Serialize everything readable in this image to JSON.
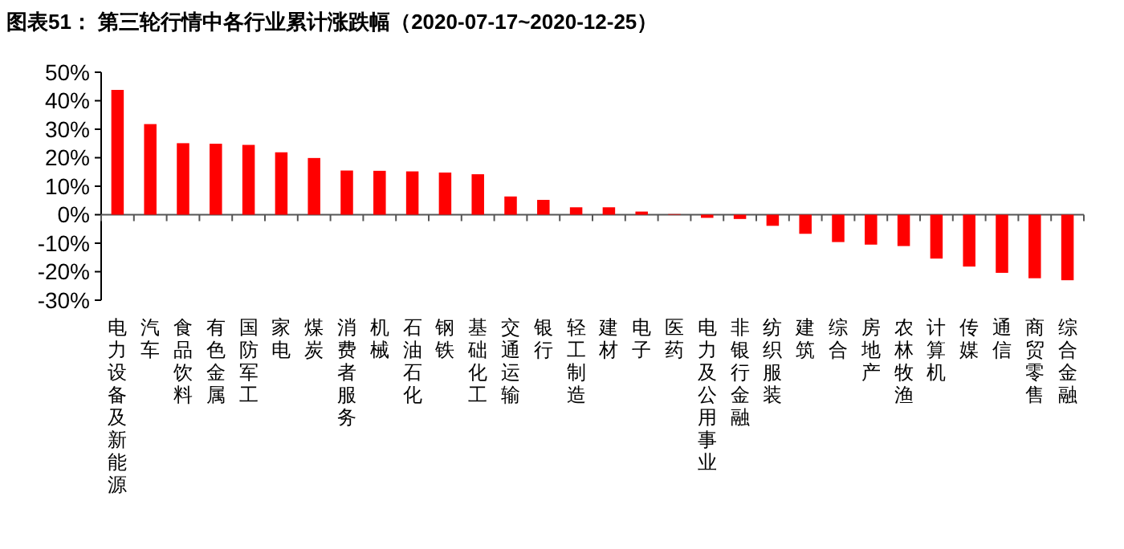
{
  "chart_data": {
    "type": "bar",
    "title": "图表51： 第三轮行情中各行业累计涨跌幅（2020-07-17~2020-12-25）",
    "categories": [
      "电力设备及新能源",
      "汽车",
      "食品饮料",
      "有色金属",
      "国防军工",
      "家电",
      "煤炭",
      "消费者服务",
      "机械",
      "石油石化",
      "钢铁",
      "基础化工",
      "交通运输",
      "银行",
      "轻工制造",
      "建材",
      "电子",
      "医药",
      "电力及公用事业",
      "非银行金融",
      "纺织服装",
      "建筑",
      "综合",
      "房地产",
      "农林牧渔",
      "计算机",
      "传媒",
      "通信",
      "商贸零售",
      "综合金融"
    ],
    "values": [
      43.8,
      31.8,
      25.1,
      24.9,
      24.5,
      21.9,
      19.9,
      15.5,
      15.4,
      15.2,
      14.8,
      14.2,
      6.4,
      5.2,
      2.6,
      2.6,
      1.1,
      0.2,
      -1.1,
      -1.5,
      -3.9,
      -6.7,
      -9.6,
      -10.5,
      -11.0,
      -15.4,
      -18.2,
      -20.4,
      -22.3,
      -23.0
    ],
    "color": "#ff0000",
    "ylim": [
      -30,
      50
    ],
    "yticks": [
      {
        "value": -30,
        "label": "-30%"
      },
      {
        "value": -20,
        "label": "-20%"
      },
      {
        "value": -10,
        "label": "-10%"
      },
      {
        "value": 0,
        "label": "0%"
      },
      {
        "value": 10,
        "label": "10%"
      },
      {
        "value": 20,
        "label": "20%"
      },
      {
        "value": 30,
        "label": "30%"
      },
      {
        "value": 40,
        "label": "40%"
      },
      {
        "value": 50,
        "label": "50%"
      }
    ]
  }
}
